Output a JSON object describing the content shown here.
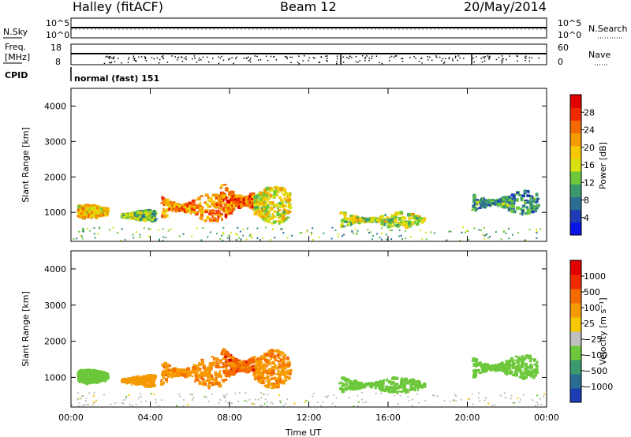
{
  "header": {
    "station": "Halley (fitACF)",
    "beam": "Beam 12",
    "date": "20/May/2014"
  },
  "top_panels": {
    "nsky_label": "N.Sky",
    "nsearch_label": "N.Search",
    "nsky_ticks": [
      "10^5",
      "10^0"
    ],
    "nsearch_ticks": [
      "10^5",
      "10^0"
    ],
    "freq_label_1": "Freq.",
    "freq_label_2": "[MHz]",
    "freq_ticks": [
      "18",
      "8"
    ],
    "nave_label": "Nave",
    "nave_ticks": [
      "60",
      "0"
    ],
    "cpid_label": "CPID",
    "cpid_value": "normal (fast) 151"
  },
  "colorbars": {
    "power": {
      "title": "Power [dB]",
      "ticks": [
        "28",
        "24",
        "20",
        "16",
        "12",
        "8",
        "4"
      ],
      "colors": [
        "#0a14e6",
        "#1e3cb4",
        "#2a6e96",
        "#3a9a6e",
        "#6cc83a",
        "#d8e010",
        "#f5c800",
        "#f59a00",
        "#f56a00",
        "#f02a00",
        "#e00000"
      ]
    },
    "velocity": {
      "title": "Velocity [m s⁻¹]",
      "ticks": [
        "1000",
        "500",
        "100",
        "25",
        "−25",
        "−100",
        "−500",
        "−1000"
      ],
      "colors": [
        "#1e3cb4",
        "#2a6e96",
        "#3a9a6e",
        "#6cc83a",
        "#c0c0c0",
        "#f5c800",
        "#f59a00",
        "#f56a00",
        "#f02a00",
        "#e00000"
      ]
    }
  },
  "chart_data": [
    {
      "type": "heatmap",
      "title": "Power [dB]",
      "xlabel": "",
      "ylabel": "Slant Range [km]",
      "x_ticks": [
        "00:00",
        "04:00",
        "08:00",
        "12:00",
        "16:00",
        "20:00",
        "00:00"
      ],
      "xlim_hours": [
        0,
        24
      ],
      "ylim_km": [
        180,
        4500
      ],
      "y_ticks": [
        1000,
        2000,
        3000,
        4000
      ],
      "echo_regions": [
        {
          "t0": 0.3,
          "t1": 1.8,
          "r0": 880,
          "r1": 1250,
          "power": 18
        },
        {
          "t0": 2.5,
          "t1": 4.2,
          "r0": 800,
          "r1": 1100,
          "power": 12
        },
        {
          "t0": 4.5,
          "t1": 7.5,
          "r0": 750,
          "r1": 1600,
          "power": 22
        },
        {
          "t0": 7.5,
          "t1": 9.2,
          "r0": 700,
          "r1": 2000,
          "power": 24
        },
        {
          "t0": 9.2,
          "t1": 11.0,
          "r0": 700,
          "r1": 1800,
          "power": 16
        },
        {
          "t0": 13.5,
          "t1": 17.8,
          "r0": 600,
          "r1": 1050,
          "power": 14
        },
        {
          "t0": 20.2,
          "t1": 23.5,
          "r0": 980,
          "r1": 1650,
          "power": 8
        }
      ]
    },
    {
      "type": "heatmap",
      "title": "Velocity [m s⁻¹]",
      "xlabel": "Time UT",
      "ylabel": "Slant Range [km]",
      "x_ticks": [
        "00:00",
        "04:00",
        "08:00",
        "12:00",
        "16:00",
        "20:00",
        "00:00"
      ],
      "xlim_hours": [
        0,
        24
      ],
      "ylim_km": [
        180,
        4500
      ],
      "y_ticks": [
        1000,
        2000,
        3000,
        4000
      ],
      "echo_regions": [
        {
          "t0": 0.3,
          "t1": 1.8,
          "r0": 880,
          "r1": 1250,
          "velocity": 50
        },
        {
          "t0": 2.5,
          "t1": 4.2,
          "r0": 800,
          "r1": 1100,
          "velocity": -200
        },
        {
          "t0": 4.5,
          "t1": 7.5,
          "r0": 750,
          "r1": 1600,
          "velocity": -400
        },
        {
          "t0": 7.5,
          "t1": 9.2,
          "r0": 700,
          "r1": 2000,
          "velocity": -700
        },
        {
          "t0": 9.2,
          "t1": 11.0,
          "r0": 700,
          "r1": 1800,
          "velocity": -400
        },
        {
          "t0": 13.5,
          "t1": 17.8,
          "r0": 600,
          "r1": 1050,
          "velocity": 60
        },
        {
          "t0": 20.2,
          "t1": 23.5,
          "r0": 980,
          "r1": 1650,
          "velocity": 60
        }
      ]
    }
  ]
}
